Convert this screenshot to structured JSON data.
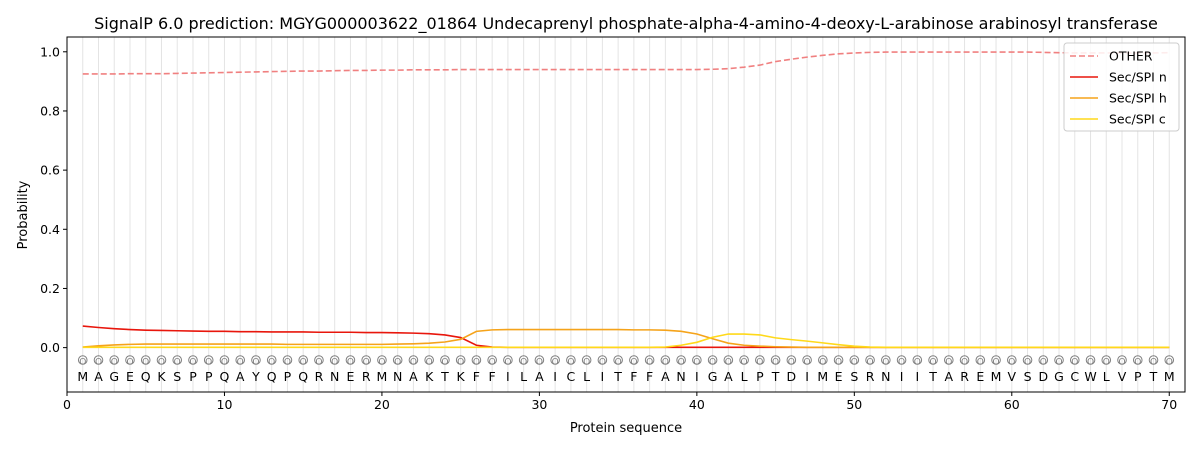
{
  "chart_data": {
    "type": "line",
    "title": "SignalP 6.0 prediction: MGYG000003622_01864 Undecaprenyl phosphate-alpha-4-amino-4-deoxy-L-arabinose arabinosyl transferase",
    "xlabel": "Protein sequence",
    "ylabel": "Probability",
    "xlim": [
      0,
      71
    ],
    "ylim": [
      -0.15,
      1.05
    ],
    "x_ticks": [
      0,
      10,
      20,
      30,
      40,
      50,
      60,
      70
    ],
    "y_ticks": [
      0.0,
      0.2,
      0.4,
      0.6,
      0.8,
      1.0
    ],
    "y_tick_labels": [
      "0.0",
      "0.2",
      "0.4",
      "0.6",
      "0.8",
      "1.0"
    ],
    "x_tick_labels": [
      "0",
      "10",
      "20",
      "30",
      "40",
      "50",
      "60",
      "70"
    ],
    "grid": "vertical lines at each residue",
    "legend_position": "top-right",
    "sequence": [
      "M",
      "A",
      "G",
      "E",
      "Q",
      "K",
      "S",
      "P",
      "P",
      "Q",
      "A",
      "Y",
      "Q",
      "P",
      "Q",
      "R",
      "N",
      "E",
      "R",
      "M",
      "N",
      "A",
      "K",
      "T",
      "K",
      "F",
      "F",
      "I",
      "L",
      "A",
      "I",
      "C",
      "L",
      "I",
      "T",
      "F",
      "F",
      "A",
      "N",
      "I",
      "G",
      "A",
      "L",
      "P",
      "T",
      "D",
      "I",
      "M",
      "E",
      "S",
      "R",
      "N",
      "I",
      "I",
      "T",
      "A",
      "R",
      "E",
      "M",
      "V",
      "S",
      "D",
      "G",
      "C",
      "W",
      "L",
      "V",
      "P",
      "T",
      "M"
    ],
    "position_label": "O",
    "series": [
      {
        "name": "OTHER",
        "color": "#f08080",
        "dashed": true,
        "values": [
          0.925,
          0.925,
          0.925,
          0.926,
          0.926,
          0.926,
          0.927,
          0.928,
          0.929,
          0.93,
          0.931,
          0.932,
          0.933,
          0.934,
          0.935,
          0.935,
          0.936,
          0.937,
          0.937,
          0.938,
          0.938,
          0.939,
          0.939,
          0.939,
          0.94,
          0.94,
          0.94,
          0.94,
          0.94,
          0.94,
          0.94,
          0.94,
          0.94,
          0.94,
          0.94,
          0.94,
          0.94,
          0.94,
          0.94,
          0.94,
          0.941,
          0.943,
          0.948,
          0.955,
          0.967,
          0.975,
          0.982,
          0.988,
          0.993,
          0.996,
          0.998,
          0.999,
          0.999,
          0.999,
          0.999,
          0.999,
          0.999,
          0.999,
          0.999,
          0.999,
          0.999,
          0.998,
          0.997,
          0.996,
          0.996,
          0.996,
          0.996,
          0.996,
          0.996,
          0.997
        ]
      },
      {
        "name": "Sec/SPI n",
        "color": "#e8160c",
        "dashed": false,
        "values": [
          0.073,
          0.068,
          0.064,
          0.061,
          0.059,
          0.058,
          0.057,
          0.056,
          0.055,
          0.055,
          0.054,
          0.054,
          0.053,
          0.053,
          0.053,
          0.052,
          0.052,
          0.052,
          0.051,
          0.051,
          0.05,
          0.049,
          0.047,
          0.043,
          0.034,
          0.008,
          0.002,
          0.001,
          0.001,
          0.001,
          0.001,
          0.001,
          0.001,
          0.001,
          0.001,
          0.001,
          0.001,
          0.001,
          0.001,
          0.001,
          0.001,
          0.001,
          0.001,
          0.001,
          0.001,
          0.001,
          0.001,
          0.001,
          0.001,
          0.001,
          0.001,
          0.001,
          0.001,
          0.001,
          0.001,
          0.001,
          0.001,
          0.001,
          0.001,
          0.001,
          0.001,
          0.001,
          0.001,
          0.001,
          0.001,
          0.001,
          0.001,
          0.001,
          0.001,
          0.001
        ]
      },
      {
        "name": "Sec/SPI h",
        "color": "#f5a31a",
        "dashed": false,
        "values": [
          0.002,
          0.006,
          0.009,
          0.011,
          0.012,
          0.012,
          0.012,
          0.012,
          0.012,
          0.012,
          0.012,
          0.012,
          0.012,
          0.011,
          0.011,
          0.011,
          0.011,
          0.011,
          0.011,
          0.011,
          0.012,
          0.013,
          0.015,
          0.019,
          0.028,
          0.055,
          0.06,
          0.061,
          0.061,
          0.061,
          0.061,
          0.061,
          0.061,
          0.061,
          0.061,
          0.06,
          0.06,
          0.059,
          0.055,
          0.046,
          0.03,
          0.015,
          0.008,
          0.005,
          0.003,
          0.002,
          0.001,
          0.001,
          0.001,
          0.001,
          0.001,
          0.001,
          0.001,
          0.001,
          0.001,
          0.001,
          0.001,
          0.001,
          0.001,
          0.001,
          0.001,
          0.001,
          0.001,
          0.001,
          0.001,
          0.001,
          0.001,
          0.001,
          0.001,
          0.001
        ]
      },
      {
        "name": "Sec/SPI c",
        "color": "#ffd91a",
        "dashed": false,
        "values": [
          0.001,
          0.001,
          0.001,
          0.001,
          0.001,
          0.001,
          0.001,
          0.001,
          0.001,
          0.001,
          0.001,
          0.001,
          0.001,
          0.001,
          0.001,
          0.001,
          0.001,
          0.001,
          0.001,
          0.001,
          0.001,
          0.001,
          0.001,
          0.001,
          0.001,
          0.001,
          0.001,
          0.001,
          0.001,
          0.001,
          0.001,
          0.001,
          0.001,
          0.001,
          0.001,
          0.001,
          0.001,
          0.002,
          0.008,
          0.018,
          0.035,
          0.046,
          0.046,
          0.043,
          0.033,
          0.027,
          0.022,
          0.016,
          0.01,
          0.005,
          0.002,
          0.001,
          0.001,
          0.001,
          0.001,
          0.001,
          0.001,
          0.001,
          0.001,
          0.001,
          0.001,
          0.001,
          0.001,
          0.001,
          0.001,
          0.001,
          0.001,
          0.001,
          0.001,
          0.001
        ]
      }
    ]
  }
}
